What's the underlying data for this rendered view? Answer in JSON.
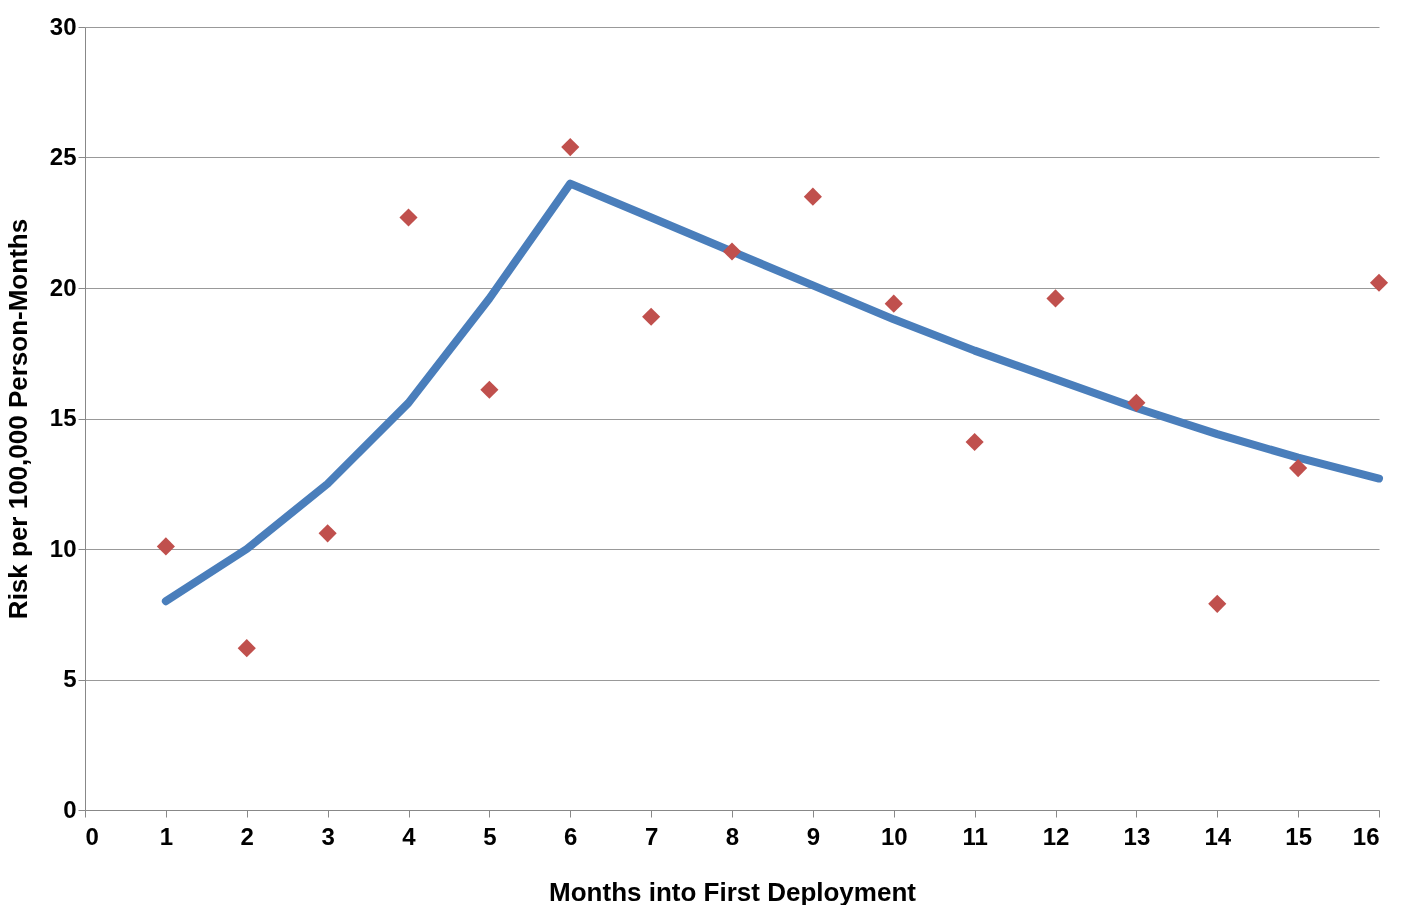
{
  "chart_data": {
    "type": "scatter",
    "xlabel": "Months into First Deployment",
    "ylabel": "Risk per 100,000 Person-Months",
    "x": [
      1,
      2,
      3,
      4,
      5,
      6,
      7,
      8,
      9,
      10,
      11,
      12,
      13,
      14,
      15,
      16
    ],
    "series": [
      {
        "type": "line",
        "color": "#4a7ebb",
        "marker": "none",
        "line_style": "solid",
        "values": [
          8.0,
          10.0,
          12.5,
          15.6,
          19.6,
          24.0,
          22.7,
          21.4,
          20.1,
          18.8,
          17.6,
          16.5,
          15.4,
          14.4,
          13.5,
          12.7
        ]
      },
      {
        "type": "scatter",
        "color": "#c0504d",
        "marker": "diamond",
        "values": [
          10.1,
          6.2,
          10.6,
          22.7,
          16.1,
          25.4,
          18.9,
          21.4,
          23.5,
          19.4,
          14.1,
          19.6,
          15.6,
          7.9,
          13.1,
          20.2
        ]
      }
    ],
    "xlim": [
      0,
      16
    ],
    "xticks": [
      0,
      1,
      2,
      3,
      4,
      5,
      6,
      7,
      8,
      9,
      10,
      11,
      12,
      13,
      14,
      15,
      16
    ],
    "ylim": [
      0,
      30
    ],
    "yticks": [
      0,
      5,
      10,
      15,
      20,
      25,
      30
    ],
    "grid": "y"
  }
}
